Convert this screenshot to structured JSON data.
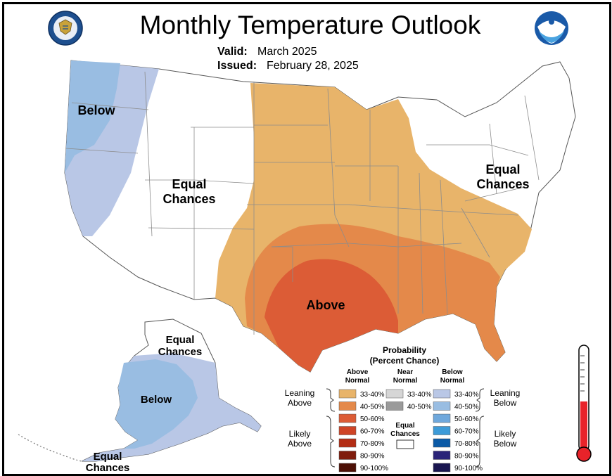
{
  "title": "Monthly Temperature Outlook",
  "valid_label": "Valid:",
  "valid_value": "March 2025",
  "issued_label": "Issued:",
  "issued_value": "February 28, 2025",
  "regions": {
    "below_west": "Below",
    "equal_west_1": "Equal",
    "equal_west_2": "Chances",
    "equal_east_1": "Equal",
    "equal_east_2": "Chances",
    "above_south": "Above",
    "alaska_equal_1": "Equal",
    "alaska_equal_2": "Chances",
    "alaska_below": "Below",
    "alaska_sw_equal_1": "Equal",
    "alaska_sw_equal_2": "Chances"
  },
  "legend": {
    "title_1": "Probability",
    "title_2": "(Percent Chance)",
    "col_above_1": "Above",
    "col_above_2": "Normal",
    "col_near_1": "Near",
    "col_near_2": "Normal",
    "col_below_1": "Below",
    "col_below_2": "Normal",
    "leaning_above_1": "Leaning",
    "leaning_above_2": "Above",
    "likely_above_1": "Likely",
    "likely_above_2": "Above",
    "leaning_below_1": "Leaning",
    "leaning_below_2": "Below",
    "likely_below_1": "Likely",
    "likely_below_2": "Below",
    "equal_1": "Equal",
    "equal_2": "Chances",
    "above": [
      {
        "label": "33-40%",
        "color": "#e8b46a"
      },
      {
        "label": "40-50%",
        "color": "#e4894a"
      },
      {
        "label": "50-60%",
        "color": "#dc5c36"
      },
      {
        "label": "60-70%",
        "color": "#cf4426"
      },
      {
        "label": "70-80%",
        "color": "#b32d14"
      },
      {
        "label": "80-90%",
        "color": "#7f1c0c"
      },
      {
        "label": "90-100%",
        "color": "#4d1006"
      }
    ],
    "near": [
      {
        "label": "33-40%",
        "color": "#d6d6d6"
      },
      {
        "label": "40-50%",
        "color": "#9a9a9a"
      }
    ],
    "below": [
      {
        "label": "33-40%",
        "color": "#b9c7e6"
      },
      {
        "label": "40-50%",
        "color": "#99bde2"
      },
      {
        "label": "50-60%",
        "color": "#6fa8dc"
      },
      {
        "label": "60-70%",
        "color": "#3d9bd8"
      },
      {
        "label": "70-80%",
        "color": "#0b5aa6"
      },
      {
        "label": "80-90%",
        "color": "#2a2378"
      },
      {
        "label": "90-100%",
        "color": "#1a1650"
      }
    ]
  },
  "map_colors": {
    "above_33_40": "#e8b46a",
    "above_40_50": "#e4894a",
    "above_50_60": "#dc5c36",
    "below_33_40": "#b9c7e6",
    "below_40_50": "#99bde2",
    "equal_chances": "#ffffff",
    "thermometer_red": "#e8232a"
  }
}
